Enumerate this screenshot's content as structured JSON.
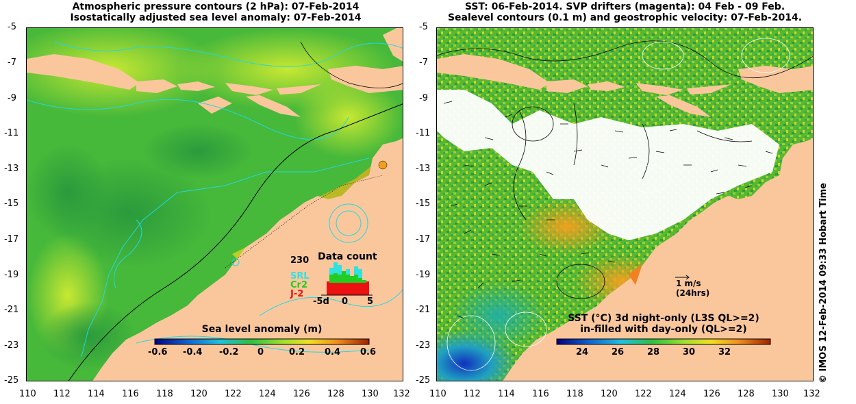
{
  "left_panel": {
    "title_line1": "Atmospheric pressure contours (2 hPa): 07-Feb-2014",
    "title_line2": "Isostatically adjusted sea level anomaly: 07-Feb-2014",
    "colorbar_label": "Sea level anomaly (m)",
    "colorbar_ticks": [
      "-0.6",
      "-0.4",
      "-0.2",
      "0",
      "0.2",
      "0.4",
      "0.6"
    ],
    "data_count": {
      "title": "Data count",
      "max_label": "230",
      "legend": [
        {
          "name": "SRL",
          "color": "#33e0e0"
        },
        {
          "name": "Cr2",
          "color": "#22cc22"
        },
        {
          "name": "J-2",
          "color": "#ee1111"
        }
      ],
      "x_labels": [
        "-5d",
        "0",
        "5"
      ]
    }
  },
  "right_panel": {
    "title_line1": "SST: 06-Feb-2014. SVP drifters (magenta): 04 Feb - 09 Feb.",
    "title_line2": "Sealevel contours (0.1 m) and geostrophic velocity: 07-Feb-2014.",
    "colorbar_label_line1": "SST (°C)  3d night-only (L3S QL>=2)",
    "colorbar_label_line2": "in-filled with day-only (QL>=2)",
    "colorbar_ticks": [
      "24",
      "26",
      "28",
      "30",
      "32"
    ],
    "velocity_scale_line1": "1 m/s",
    "velocity_scale_line2": "(24hrs)"
  },
  "y_axis_labels": [
    "-5",
    "-7",
    "-9",
    "-11",
    "-13",
    "-15",
    "-17",
    "-19",
    "-21",
    "-23",
    "-25"
  ],
  "x_axis_labels": [
    "110",
    "112",
    "114",
    "116",
    "118",
    "120",
    "122",
    "124",
    "126",
    "128",
    "130",
    "132"
  ],
  "side_label": "© IMOS 12-Feb-2014 09:33 Hobart Time",
  "colors": {
    "land": "#fac79d",
    "ocean_bg": "#44c03c",
    "cyan_contour": "#22d8e0"
  }
}
